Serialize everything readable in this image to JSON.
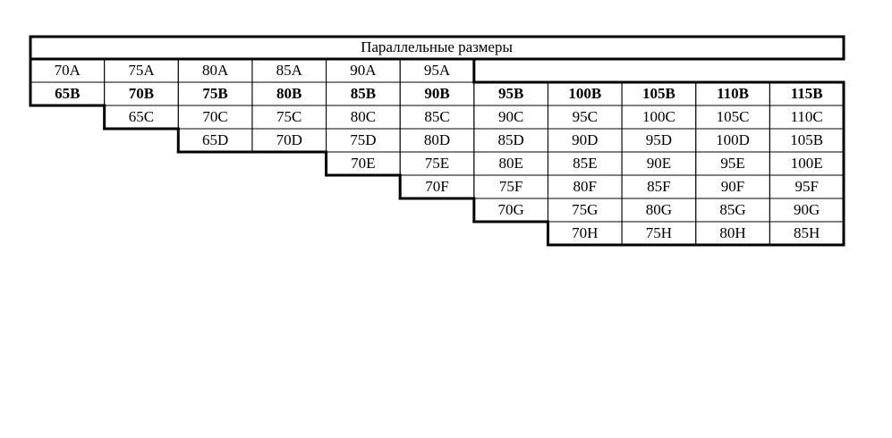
{
  "table": {
    "title": "Параллельные размеры",
    "rows": [
      [
        "70A",
        "75A",
        "80A",
        "85A",
        "90A",
        "95A",
        null,
        null,
        null,
        null,
        null
      ],
      [
        "65B",
        "70B",
        "75B",
        "80B",
        "85B",
        "90B",
        "95B",
        "100B",
        "105B",
        "110B",
        "115B"
      ],
      [
        null,
        "65C",
        "70C",
        "75C",
        "80C",
        "85C",
        "90C",
        "95C",
        "100C",
        "105C",
        "110C"
      ],
      [
        null,
        null,
        "65D",
        "70D",
        "75D",
        "80D",
        "85D",
        "90D",
        "95D",
        "100D",
        "105B"
      ],
      [
        null,
        null,
        null,
        null,
        "70E",
        "75E",
        "80E",
        "85E",
        "90E",
        "95E",
        "100E"
      ],
      [
        null,
        null,
        null,
        null,
        null,
        "70F",
        "75F",
        "80F",
        "85F",
        "90F",
        "95F"
      ],
      [
        null,
        null,
        null,
        null,
        null,
        null,
        "70G",
        "75G",
        "80G",
        "85G",
        "90G"
      ],
      [
        null,
        null,
        null,
        null,
        null,
        null,
        null,
        "70H",
        "75H",
        "80H",
        "85H"
      ]
    ]
  }
}
